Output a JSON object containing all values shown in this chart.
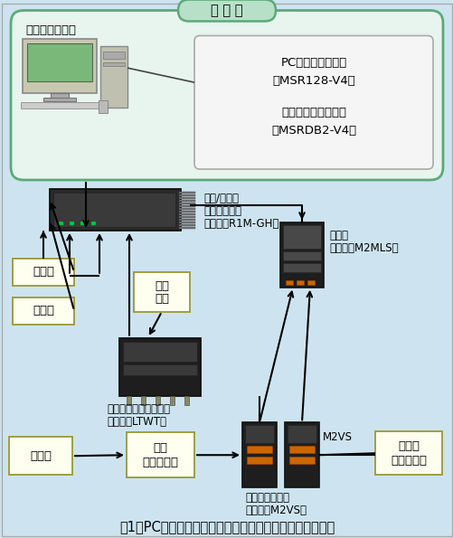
{
  "bg_color": "#cde4f0",
  "title": "図1　PCレコーダによる太陽光発電システムのデータ収集",
  "office_label": "事 務 所",
  "pc_label": "管理用パソコン",
  "sw_line1": "PCレコーダソフト",
  "sw_line2": "（MSR128-V4）",
  "sw_line3": "帳票作成支援ソフト",
  "sw_line4": "（MSRDB2-V4）",
  "dc_unit_line1": "直流/熱電対",
  "dc_unit_line2": "入力ユニット",
  "dc_unit_line3": "（形式：R1M-GH）",
  "multiplier_line1": "乗算器",
  "multiplier_line2": "（形式：M2MLS）",
  "temp_label": "温度計",
  "solar_rad_label": "日射計",
  "elec_line1": "電気",
  "elec_line2": "機器",
  "power_trans_line1": "電力トランスデューサ",
  "power_trans_line2": "（形式：LTWT）",
  "battery_label": "蓄電池",
  "control_line1": "制御",
  "control_line2": "モジュール",
  "dc_conv_line1": "直流入力変換器",
  "dc_conv_line2": "（形式：M2VS）",
  "m2vs_label": "M2VS",
  "solar_line1": "太陽光",
  "solar_line2": "モジュール",
  "office_fc": "#e8f5ee",
  "office_ec": "#5aaa7a",
  "pill_fc": "#b8e0c8",
  "pill_ec": "#5aaa7a",
  "box_fc": "#fffff0",
  "box_ec": "#999933",
  "sw_fc": "#f5f5f5",
  "sw_ec": "#aaaaaa"
}
